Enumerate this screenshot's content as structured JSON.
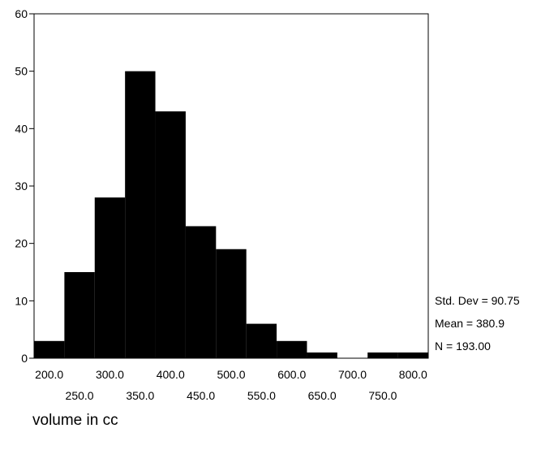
{
  "chart_data": {
    "type": "bar",
    "xlabel": "volume in cc",
    "ylabel": "",
    "ylim": [
      0,
      60
    ],
    "yticks": [
      0,
      10,
      20,
      30,
      40,
      50,
      60
    ],
    "xlim": [
      175,
      825
    ],
    "xticks_row1": [
      "200.0",
      "300.0",
      "400.0",
      "500.0",
      "600.0",
      "700.0",
      "800.0"
    ],
    "xticks_row2": [
      "250.0",
      "350.0",
      "450.0",
      "550.0",
      "650.0",
      "750.0"
    ],
    "categories": [
      "200.0",
      "250.0",
      "300.0",
      "350.0",
      "400.0",
      "450.0",
      "500.0",
      "550.0",
      "600.0",
      "650.0",
      "700.0",
      "750.0",
      "800.0"
    ],
    "values": [
      3,
      15,
      28,
      50,
      43,
      23,
      19,
      6,
      3,
      1,
      0,
      1,
      1
    ],
    "bar_color": "#000000",
    "stats": {
      "std_dev": "Std. Dev = 90.75",
      "mean": "Mean = 380.9",
      "n": "N = 193.00"
    }
  }
}
